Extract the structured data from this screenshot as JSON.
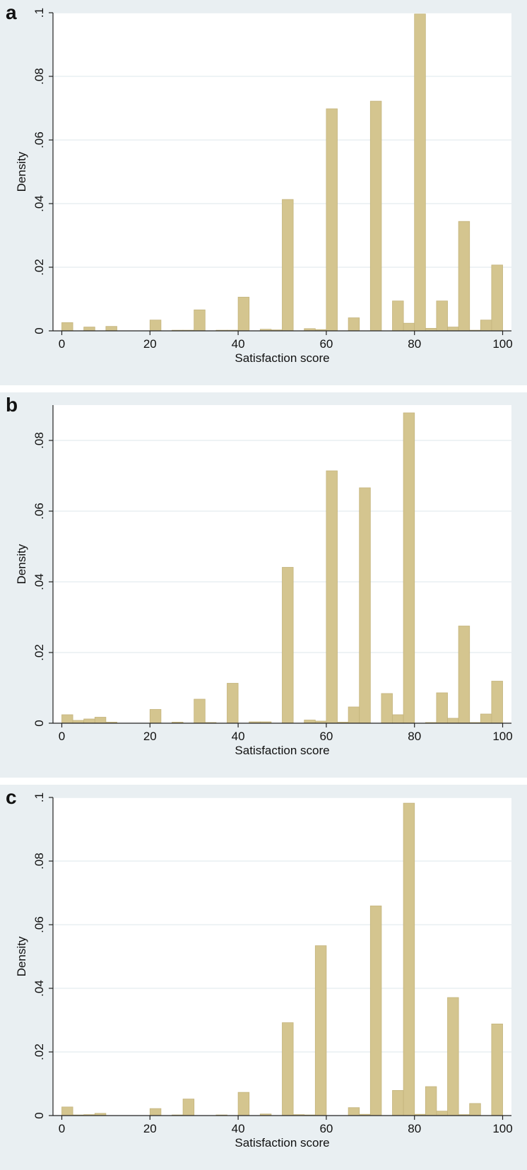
{
  "colors": {
    "bar": "#d4c58f",
    "bar_edge": "#c4b47c",
    "plot_bg": "#ffffff",
    "panel_bg": "#e9eff2",
    "grid": "#e9eff2",
    "axis": "#222222"
  },
  "chart_data": [
    {
      "panel_label": "a",
      "type": "bar",
      "xlabel": "Satisfaction score",
      "ylabel": "Density",
      "xlim": [
        -2,
        102
      ],
      "ylim": [
        0,
        0.1
      ],
      "x_ticks": [
        0,
        20,
        40,
        60,
        80,
        100
      ],
      "x_tick_labels": [
        "0",
        "20",
        "40",
        "60",
        "80",
        "100"
      ],
      "y_ticks": [
        0,
        0.02,
        0.04,
        0.06,
        0.08,
        0.1
      ],
      "y_tick_labels": [
        "0",
        ".02",
        ".04",
        ".06",
        ".08",
        ".1"
      ],
      "bin_width": 2.5,
      "bins": [
        {
          "x": 0,
          "value": 0.0026
        },
        {
          "x": 5,
          "value": 0.0012
        },
        {
          "x": 10,
          "value": 0.0014
        },
        {
          "x": 20,
          "value": 0.0034
        },
        {
          "x": 25,
          "value": 0.0002
        },
        {
          "x": 27.5,
          "value": 0.0002
        },
        {
          "x": 30,
          "value": 0.0066
        },
        {
          "x": 35,
          "value": 0.0002
        },
        {
          "x": 37.5,
          "value": 0.0002
        },
        {
          "x": 40,
          "value": 0.0106
        },
        {
          "x": 45,
          "value": 0.0005
        },
        {
          "x": 47.5,
          "value": 0.0003
        },
        {
          "x": 50,
          "value": 0.0413
        },
        {
          "x": 55,
          "value": 0.0007
        },
        {
          "x": 57.5,
          "value": 0.0004
        },
        {
          "x": 60,
          "value": 0.0698
        },
        {
          "x": 65,
          "value": 0.0041
        },
        {
          "x": 70,
          "value": 0.0722
        },
        {
          "x": 75,
          "value": 0.0094
        },
        {
          "x": 77.5,
          "value": 0.0024
        },
        {
          "x": 80,
          "value": 0.0996
        },
        {
          "x": 82.5,
          "value": 0.0008
        },
        {
          "x": 85,
          "value": 0.0094
        },
        {
          "x": 87.5,
          "value": 0.0012
        },
        {
          "x": 90,
          "value": 0.0344
        },
        {
          "x": 92.5,
          "value": 0.0002
        },
        {
          "x": 95,
          "value": 0.0034
        },
        {
          "x": 97.5,
          "value": 0.0207
        }
      ]
    },
    {
      "panel_label": "b",
      "type": "bar",
      "xlabel": "Satisfaction score",
      "ylabel": "Density",
      "xlim": [
        -2,
        102
      ],
      "ylim": [
        0,
        0.09
      ],
      "x_ticks": [
        0,
        20,
        40,
        60,
        80,
        100
      ],
      "x_tick_labels": [
        "0",
        "20",
        "40",
        "60",
        "80",
        "100"
      ],
      "y_ticks": [
        0,
        0.02,
        0.04,
        0.06,
        0.08
      ],
      "y_tick_labels": [
        "0",
        ".02",
        ".04",
        ".06",
        ".08"
      ],
      "bin_width": 2.5,
      "bins": [
        {
          "x": 0,
          "value": 0.0024
        },
        {
          "x": 2.5,
          "value": 0.0008
        },
        {
          "x": 5,
          "value": 0.0012
        },
        {
          "x": 7.5,
          "value": 0.0017
        },
        {
          "x": 10,
          "value": 0.0003
        },
        {
          "x": 20,
          "value": 0.0039
        },
        {
          "x": 25,
          "value": 0.0003
        },
        {
          "x": 30,
          "value": 0.0068
        },
        {
          "x": 32.5,
          "value": 0.0002
        },
        {
          "x": 37.5,
          "value": 0.0113
        },
        {
          "x": 42.5,
          "value": 0.0004
        },
        {
          "x": 45,
          "value": 0.0004
        },
        {
          "x": 50,
          "value": 0.0441
        },
        {
          "x": 55,
          "value": 0.0009
        },
        {
          "x": 57.5,
          "value": 0.0006
        },
        {
          "x": 60,
          "value": 0.0714
        },
        {
          "x": 62.5,
          "value": 0.0003
        },
        {
          "x": 65,
          "value": 0.0046
        },
        {
          "x": 67.5,
          "value": 0.0666
        },
        {
          "x": 72.5,
          "value": 0.0084
        },
        {
          "x": 75,
          "value": 0.0024
        },
        {
          "x": 77.5,
          "value": 0.0878
        },
        {
          "x": 82.5,
          "value": 0.0002
        },
        {
          "x": 85,
          "value": 0.0086
        },
        {
          "x": 87.5,
          "value": 0.0014
        },
        {
          "x": 90,
          "value": 0.0275
        },
        {
          "x": 92.5,
          "value": 0.0002
        },
        {
          "x": 95,
          "value": 0.0026
        },
        {
          "x": 97.5,
          "value": 0.0119
        }
      ]
    },
    {
      "panel_label": "c",
      "type": "bar",
      "xlabel": "Satisfaction score",
      "ylabel": "Density",
      "xlim": [
        -2,
        102
      ],
      "ylim": [
        0,
        0.1
      ],
      "x_ticks": [
        0,
        20,
        40,
        60,
        80,
        100
      ],
      "x_tick_labels": [
        "0",
        "20",
        "40",
        "60",
        "80",
        "100"
      ],
      "y_ticks": [
        0,
        0.02,
        0.04,
        0.06,
        0.08,
        0.1
      ],
      "y_tick_labels": [
        "0",
        ".02",
        ".04",
        ".06",
        ".08",
        ".1"
      ],
      "bin_width": 2.5,
      "bins": [
        {
          "x": 0,
          "value": 0.0027
        },
        {
          "x": 2.5,
          "value": 0.0002
        },
        {
          "x": 5,
          "value": 0.0003
        },
        {
          "x": 7.5,
          "value": 0.0007
        },
        {
          "x": 20,
          "value": 0.0022
        },
        {
          "x": 25,
          "value": 0.0002
        },
        {
          "x": 27.5,
          "value": 0.0052
        },
        {
          "x": 35,
          "value": 0.0002
        },
        {
          "x": 40,
          "value": 0.0073
        },
        {
          "x": 45,
          "value": 0.0005
        },
        {
          "x": 50,
          "value": 0.0292
        },
        {
          "x": 52.5,
          "value": 0.0003
        },
        {
          "x": 55,
          "value": 0.0002
        },
        {
          "x": 57.5,
          "value": 0.0534
        },
        {
          "x": 65,
          "value": 0.0025
        },
        {
          "x": 67.5,
          "value": 0.0004
        },
        {
          "x": 70,
          "value": 0.0659
        },
        {
          "x": 75,
          "value": 0.0079
        },
        {
          "x": 77.5,
          "value": 0.0982
        },
        {
          "x": 80,
          "value": 0.0004
        },
        {
          "x": 82.5,
          "value": 0.0091
        },
        {
          "x": 85,
          "value": 0.0014
        },
        {
          "x": 87.5,
          "value": 0.0371
        },
        {
          "x": 90,
          "value": 0.0003
        },
        {
          "x": 92.5,
          "value": 0.0038
        },
        {
          "x": 97.5,
          "value": 0.0288
        }
      ]
    }
  ]
}
